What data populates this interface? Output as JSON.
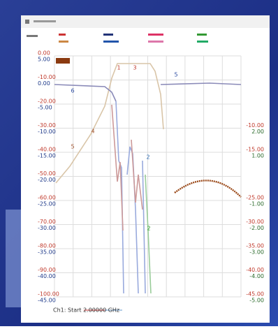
{
  "axes": {
    "left": [
      {
        "primary": "0.00",
        "secondary": "5.00"
      },
      {
        "primary": "-10.00",
        "secondary": "0.00"
      },
      {
        "primary": "-20.00",
        "secondary": "-5.00"
      },
      {
        "primary": "-30.00",
        "secondary": "-10.00"
      },
      {
        "primary": "-40.00",
        "secondary": "-15.00"
      },
      {
        "primary": "-50.00",
        "secondary": "-20.00"
      },
      {
        "primary": "-60.00",
        "secondary": "-25.00"
      },
      {
        "primary": "-70.00",
        "secondary": "-30.00"
      },
      {
        "primary": "-80.00",
        "secondary": "-35.00"
      },
      {
        "primary": "-90.00",
        "secondary": "-40.00"
      },
      {
        "primary": "-100.00",
        "secondary": "-45.00"
      }
    ],
    "right": [
      {
        "primary": "-10.00",
        "secondary": "2.00"
      },
      {
        "primary": "-15.00",
        "secondary": "1.00"
      },
      {
        "primary": "-25.00",
        "secondary": "-1.00"
      },
      {
        "primary": "-30.00",
        "secondary": "-2.00"
      },
      {
        "primary": "-35.00",
        "secondary": "-3.00"
      },
      {
        "primary": "-40.00",
        "secondary": "-4.00"
      },
      {
        "primary": "-45.00",
        "secondary": "-5.00"
      }
    ]
  },
  "markers": [
    "1",
    "3",
    "5",
    "6",
    "4",
    "5",
    "2",
    "2"
  ],
  "footer": "Ch1: Start 2.00000 GHz"
}
